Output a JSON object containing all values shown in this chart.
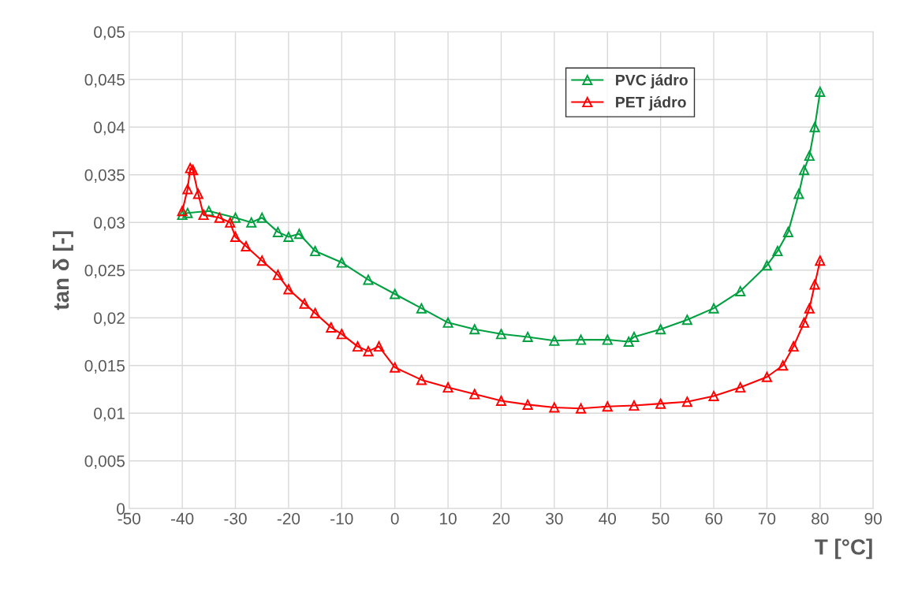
{
  "chart_data": {
    "type": "line",
    "xlabel": "T [°C]",
    "ylabel": "tan δ [-]",
    "xlim": [
      -50,
      90
    ],
    "xticks": [
      -50,
      -40,
      -30,
      -20,
      -10,
      0,
      10,
      20,
      30,
      40,
      50,
      60,
      70,
      80,
      90
    ],
    "ylim": [
      0,
      0.05
    ],
    "yticks": [
      {
        "value": 0,
        "label": "0"
      },
      {
        "value": 0.005,
        "label": "0,005"
      },
      {
        "value": 0.01,
        "label": "0,01"
      },
      {
        "value": 0.015,
        "label": "0,015"
      },
      {
        "value": 0.02,
        "label": "0,02"
      },
      {
        "value": 0.025,
        "label": "0,025"
      },
      {
        "value": 0.03,
        "label": "0,03"
      },
      {
        "value": 0.035,
        "label": "0,035"
      },
      {
        "value": 0.04,
        "label": "0,04"
      },
      {
        "value": 0.045,
        "label": "0,045"
      },
      {
        "value": 0.05,
        "label": "0,05"
      }
    ],
    "grid": true,
    "legend": "top right",
    "marker": "triangle",
    "line_style": "solid",
    "series": [
      {
        "name": "PVC jádro",
        "color": "#00a040",
        "x": [
          -40,
          -39,
          -35,
          -30,
          -27,
          -25,
          -22,
          -20,
          -18,
          -15,
          -10,
          -5,
          0,
          5,
          10,
          15,
          20,
          25,
          30,
          35,
          40,
          44,
          45,
          50,
          55,
          60,
          65,
          70,
          72,
          74,
          76,
          77,
          78,
          79,
          80
        ],
        "values": [
          0.0308,
          0.031,
          0.0312,
          0.0305,
          0.03,
          0.0305,
          0.029,
          0.0285,
          0.0288,
          0.027,
          0.0258,
          0.024,
          0.0225,
          0.021,
          0.0195,
          0.0188,
          0.0183,
          0.018,
          0.0176,
          0.0177,
          0.0177,
          0.0175,
          0.018,
          0.0188,
          0.0198,
          0.021,
          0.0228,
          0.0255,
          0.027,
          0.029,
          0.033,
          0.0355,
          0.037,
          0.04,
          0.0437
        ]
      },
      {
        "name": "PET jádro",
        "color": "#ff0000",
        "x": [
          -40,
          -39,
          -38.5,
          -38,
          -37,
          -36,
          -33,
          -31,
          -30,
          -28,
          -25,
          -22,
          -20,
          -17,
          -15,
          -12,
          -10,
          -7,
          -5,
          -3,
          0,
          5,
          10,
          15,
          20,
          25,
          30,
          35,
          40,
          45,
          50,
          55,
          60,
          65,
          70,
          73,
          75,
          77,
          78,
          79,
          80
        ],
        "values": [
          0.0312,
          0.0335,
          0.0357,
          0.0355,
          0.033,
          0.0308,
          0.0305,
          0.03,
          0.0285,
          0.0275,
          0.026,
          0.0245,
          0.023,
          0.0215,
          0.0205,
          0.019,
          0.0183,
          0.017,
          0.0165,
          0.017,
          0.0148,
          0.0135,
          0.0127,
          0.012,
          0.0113,
          0.0109,
          0.0106,
          0.0105,
          0.0107,
          0.0108,
          0.011,
          0.0112,
          0.0118,
          0.0127,
          0.0138,
          0.015,
          0.017,
          0.0195,
          0.021,
          0.0235,
          0.026
        ]
      }
    ]
  }
}
